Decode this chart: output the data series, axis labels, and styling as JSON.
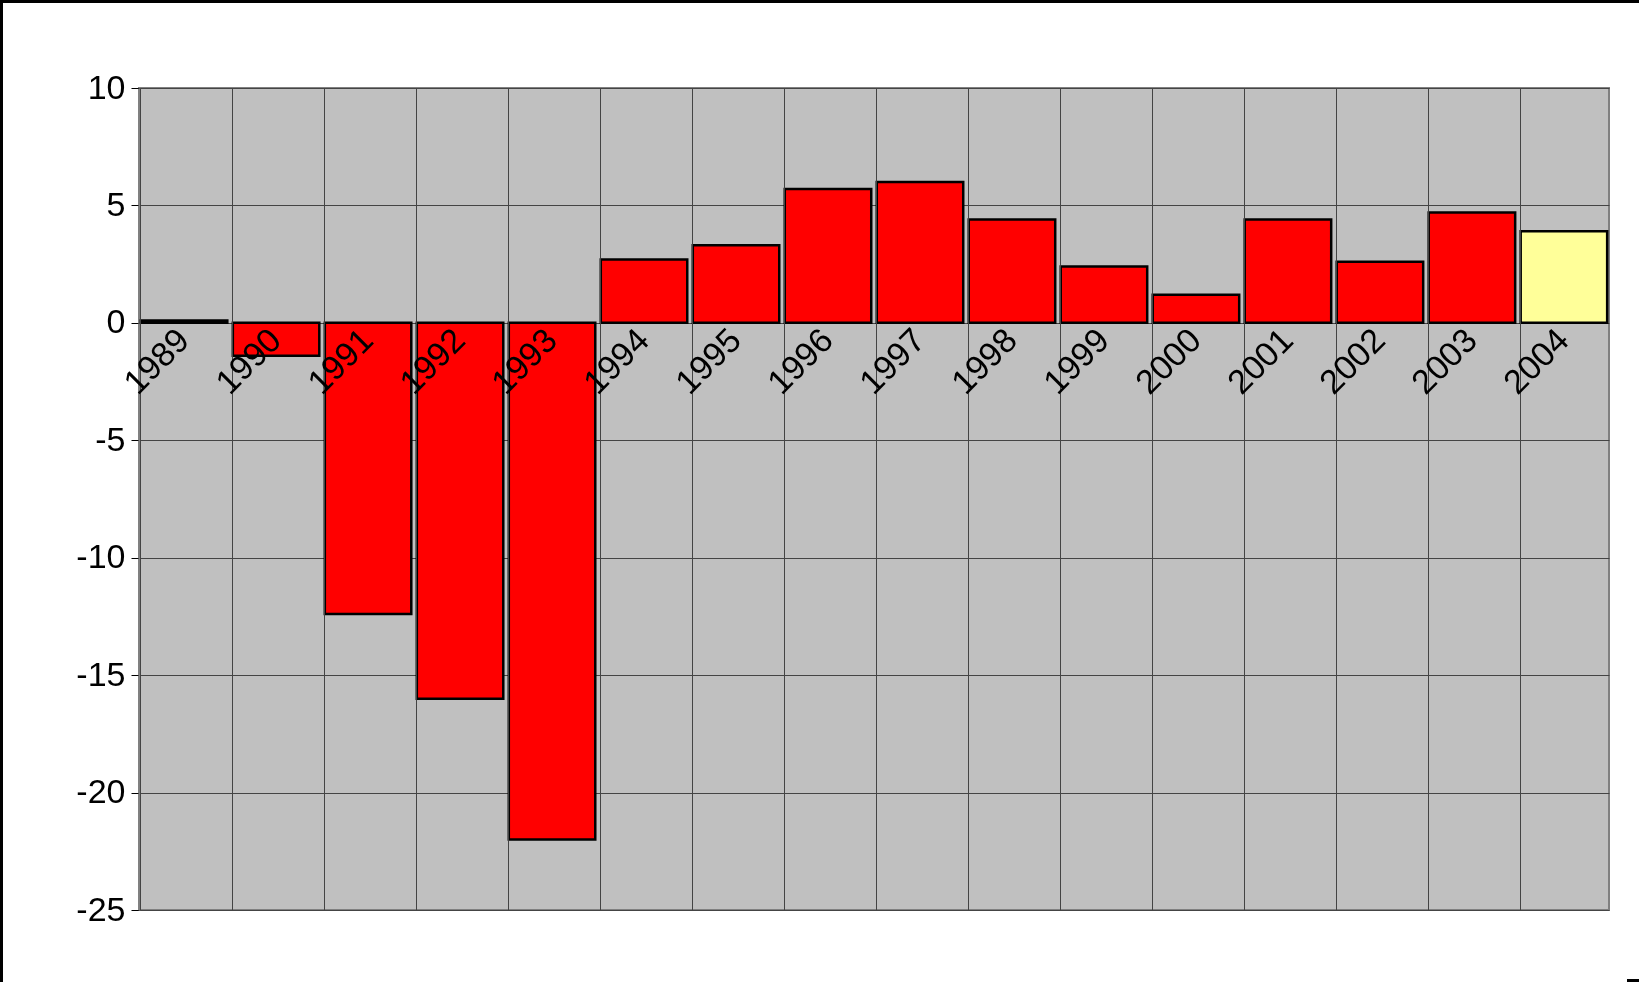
{
  "chart_data": {
    "type": "bar",
    "categories": [
      "1989",
      "1990",
      "1991",
      "1992",
      "1993",
      "1994",
      "1995",
      "1996",
      "1997",
      "1998",
      "1999",
      "2000",
      "2001",
      "2002",
      "2003",
      "2004"
    ],
    "values": [
      0.1,
      -1.4,
      -12.4,
      -16.0,
      -22.0,
      2.7,
      3.3,
      5.7,
      6.0,
      4.4,
      2.4,
      1.2,
      4.4,
      2.6,
      4.7,
      3.9
    ],
    "colors": [
      "#ff0000",
      "#ff0000",
      "#ff0000",
      "#ff0000",
      "#ff0000",
      "#ff0000",
      "#ff0000",
      "#ff0000",
      "#ff0000",
      "#ff0000",
      "#ff0000",
      "#ff0000",
      "#ff0000",
      "#ff0000",
      "#ff0000",
      "#ffff99"
    ],
    "ylim": [
      -25,
      10
    ],
    "yticks": [
      -25,
      -20,
      -15,
      -10,
      -5,
      0,
      5,
      10
    ],
    "grid": true
  }
}
